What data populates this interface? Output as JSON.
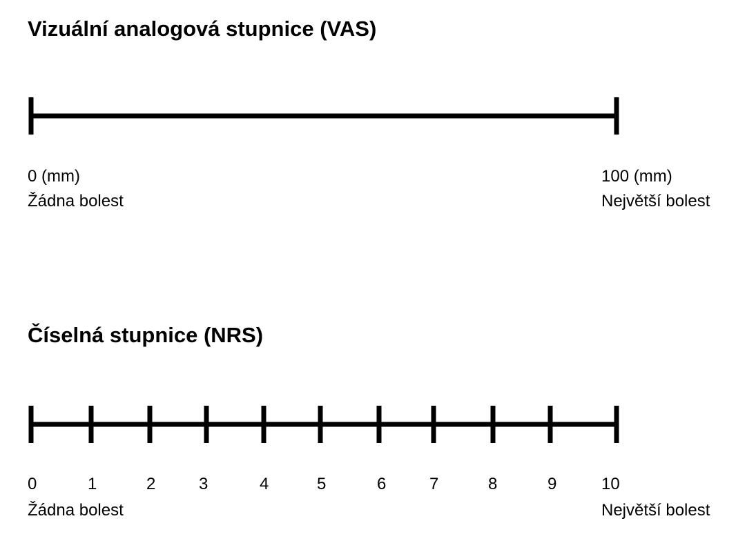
{
  "vas": {
    "title": "Vizuální analogová stupnice (VAS)",
    "min_value": "0 (mm)",
    "min_label": "Žádna bolest",
    "max_value": "100 (mm)",
    "max_label": "Největší bolest",
    "range": [
      0,
      100
    ]
  },
  "nrs": {
    "title": "Číselná stupnice (NRS)",
    "ticks": [
      "0",
      "1",
      "2",
      "3",
      "4",
      "5",
      "6",
      "7",
      "8",
      "9",
      "10"
    ],
    "min_label": "Žádna bolest",
    "max_label": "Největší bolest",
    "range": [
      0,
      10
    ]
  },
  "colors": {
    "line": "#000000",
    "text": "#000000",
    "background": "#ffffff"
  }
}
